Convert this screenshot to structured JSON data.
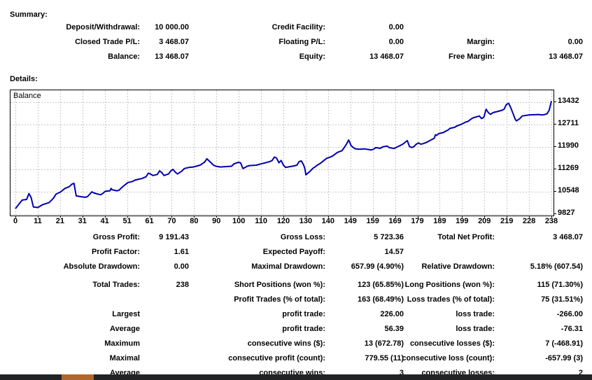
{
  "summary": {
    "title": "Summary:",
    "rows": [
      {
        "cells": [
          "Deposit/Withdrawal:",
          "10 000.00",
          "Credit Facility:",
          "0.00",
          "",
          ""
        ]
      },
      {
        "cells": [
          "Closed Trade P/L:",
          "3 468.07",
          "Floating P/L:",
          "0.00",
          "Margin:",
          "0.00"
        ]
      },
      {
        "cells": [
          "Balance:",
          "13 468.07",
          "Equity:",
          "13 468.07",
          "Free Margin:",
          "13 468.07"
        ]
      }
    ]
  },
  "details": {
    "title": "Details:",
    "rows": [
      {
        "cells": [
          "Gross Profit:",
          "9 191.43",
          "Gross Loss:",
          "5 723.36",
          "Total Net Profit:",
          "3 468.07"
        ]
      },
      {
        "cells": [
          "Profit Factor:",
          "1.61",
          "Expected Payoff:",
          "14.57",
          "",
          ""
        ]
      },
      {
        "cells": [
          "Absolute Drawdown:",
          "0.00",
          "Maximal Drawdown:",
          "657.99 (4.90%)",
          "Relative Drawdown:",
          "5.18% (607.54)"
        ]
      },
      {
        "cells": [
          "Total Trades:",
          "238",
          "Short Positions (won %):",
          "123 (65.85%)",
          "Long Positions (won %):",
          "115 (71.30%)"
        ]
      },
      {
        "cells": [
          "",
          "",
          "Profit Trades (% of total):",
          "163 (68.49%)",
          "Loss trades (% of total):",
          "75 (31.51%)"
        ]
      },
      {
        "cells": [
          "Largest",
          "",
          "profit trade:",
          "226.00",
          "loss trade:",
          "-266.00"
        ]
      },
      {
        "cells": [
          "Average",
          "",
          "profit trade:",
          "56.39",
          "loss trade:",
          "-76.31"
        ]
      },
      {
        "cells": [
          "Maximum",
          "",
          "consecutive wins ($):",
          "13 (672.78)",
          "consecutive losses ($):",
          "7 (-468.91)"
        ]
      },
      {
        "cells": [
          "Maximal",
          "",
          "consecutive profit (count):",
          "779.55 (11)",
          "consecutive loss (count):",
          "-657.99 (3)"
        ]
      },
      {
        "cells": [
          "Average",
          "",
          "consecutive wins:",
          "3",
          "consecutive losses:",
          "2"
        ]
      }
    ]
  },
  "chart_data": {
    "type": "line",
    "legend": "Balance",
    "xlabel": "",
    "ylabel": "",
    "x_range": [
      0,
      238
    ],
    "x_ticks": [
      "0",
      "11",
      "21",
      "31",
      "41",
      "51",
      "61",
      "70",
      "80",
      "90",
      "100",
      "110",
      "120",
      "130",
      "140",
      "149",
      "159",
      "169",
      "179",
      "189",
      "199",
      "209",
      "219",
      "228",
      "238"
    ],
    "y_ticks": [
      13432,
      12711,
      11990,
      11269,
      10548,
      9827
    ],
    "grid": true,
    "line_color": "#0000B0",
    "grid_color": "#c9c9c9",
    "points": [
      [
        0,
        10005
      ],
      [
        3,
        10280
      ],
      [
        5,
        10300
      ],
      [
        6,
        10490
      ],
      [
        7,
        10360
      ],
      [
        8,
        10060
      ],
      [
        10,
        10040
      ],
      [
        12,
        10130
      ],
      [
        15,
        10200
      ],
      [
        17,
        10350
      ],
      [
        18,
        10470
      ],
      [
        20,
        10540
      ],
      [
        22,
        10655
      ],
      [
        24,
        10715
      ],
      [
        25,
        10790
      ],
      [
        26,
        10820
      ],
      [
        26.5,
        10620
      ],
      [
        27,
        10415
      ],
      [
        29,
        10390
      ],
      [
        31,
        10370
      ],
      [
        32,
        10390
      ],
      [
        33,
        10470
      ],
      [
        34,
        10545
      ],
      [
        35,
        10505
      ],
      [
        37,
        10465
      ],
      [
        38,
        10455
      ],
      [
        39,
        10505
      ],
      [
        40,
        10565
      ],
      [
        42,
        10580
      ],
      [
        42.5,
        10655
      ],
      [
        43,
        10610
      ],
      [
        45,
        10580
      ],
      [
        46,
        10595
      ],
      [
        47,
        10670
      ],
      [
        48,
        10730
      ],
      [
        49,
        10790
      ],
      [
        50,
        10845
      ],
      [
        52,
        10880
      ],
      [
        53,
        10920
      ],
      [
        55,
        10955
      ],
      [
        56,
        10970
      ],
      [
        58,
        11030
      ],
      [
        59,
        11145
      ],
      [
        60,
        11120
      ],
      [
        61,
        11070
      ],
      [
        63,
        11105
      ],
      [
        64,
        11220
      ],
      [
        65,
        11165
      ],
      [
        66,
        11070
      ],
      [
        68,
        11120
      ],
      [
        69,
        11220
      ],
      [
        70,
        11270
      ],
      [
        71,
        11180
      ],
      [
        72,
        11120
      ],
      [
        74,
        11220
      ],
      [
        75,
        11295
      ],
      [
        77,
        11330
      ],
      [
        79,
        11345
      ],
      [
        82,
        11405
      ],
      [
        84,
        11500
      ],
      [
        85,
        11610
      ],
      [
        88,
        11405
      ],
      [
        89,
        11370
      ],
      [
        91,
        11345
      ],
      [
        96,
        11370
      ],
      [
        97,
        11445
      ],
      [
        99,
        11495
      ],
      [
        100,
        11480
      ],
      [
        101,
        11295
      ],
      [
        102,
        11330
      ],
      [
        103,
        11370
      ],
      [
        104,
        11390
      ],
      [
        107,
        11405
      ],
      [
        109,
        11445
      ],
      [
        111,
        11480
      ],
      [
        113,
        11520
      ],
      [
        114,
        11555
      ],
      [
        115,
        11665
      ],
      [
        116,
        11630
      ],
      [
        117,
        11480
      ],
      [
        118,
        11555
      ],
      [
        119,
        11405
      ],
      [
        120,
        11330
      ],
      [
        121,
        11345
      ],
      [
        123,
        11370
      ],
      [
        124,
        11385
      ],
      [
        125,
        11405
      ],
      [
        126,
        11520
      ],
      [
        127,
        11540
      ],
      [
        128,
        11405
      ],
      [
        128.5,
        11295
      ],
      [
        129,
        11090
      ],
      [
        131,
        11220
      ],
      [
        132,
        11295
      ],
      [
        133,
        11345
      ],
      [
        134,
        11405
      ],
      [
        135,
        11445
      ],
      [
        136,
        11495
      ],
      [
        137,
        11555
      ],
      [
        138,
        11615
      ],
      [
        140,
        11670
      ],
      [
        141,
        11705
      ],
      [
        142,
        11760
      ],
      [
        143,
        11815
      ],
      [
        145,
        11870
      ],
      [
        146,
        11970
      ],
      [
        147,
        12080
      ],
      [
        148,
        12215
      ],
      [
        149,
        12040
      ],
      [
        150,
        11970
      ],
      [
        151,
        11930
      ],
      [
        153,
        11915
      ],
      [
        155,
        11930
      ],
      [
        156,
        11915
      ],
      [
        158,
        11895
      ],
      [
        159,
        11915
      ],
      [
        160,
        11970
      ],
      [
        162,
        11945
      ],
      [
        163,
        11990
      ],
      [
        165,
        12020
      ],
      [
        166,
        11970
      ],
      [
        168,
        11940
      ],
      [
        169,
        11970
      ],
      [
        171,
        12045
      ],
      [
        172,
        12080
      ],
      [
        174,
        12195
      ],
      [
        175,
        12005
      ],
      [
        176,
        11970
      ],
      [
        177,
        12005
      ],
      [
        178,
        12080
      ],
      [
        179,
        12120
      ],
      [
        180,
        12080
      ],
      [
        181,
        12095
      ],
      [
        182,
        12120
      ],
      [
        183,
        12155
      ],
      [
        184,
        12195
      ],
      [
        186,
        12270
      ],
      [
        186.5,
        12380
      ],
      [
        187,
        12365
      ],
      [
        188,
        12420
      ],
      [
        190,
        12455
      ],
      [
        191,
        12495
      ],
      [
        192,
        12530
      ],
      [
        193,
        12590
      ],
      [
        195,
        12620
      ],
      [
        196,
        12665
      ],
      [
        198,
        12720
      ],
      [
        199,
        12755
      ],
      [
        200,
        12795
      ],
      [
        201,
        12815
      ],
      [
        202,
        12870
      ],
      [
        203,
        12920
      ],
      [
        204,
        12945
      ],
      [
        205,
        12965
      ],
      [
        206,
        12985
      ],
      [
        207,
        12905
      ],
      [
        208,
        12945
      ],
      [
        209,
        13205
      ],
      [
        210,
        13095
      ],
      [
        211,
        13040
      ],
      [
        212,
        13095
      ],
      [
        213,
        13115
      ],
      [
        214,
        13130
      ],
      [
        216,
        13170
      ],
      [
        217,
        13205
      ],
      [
        218,
        13355
      ],
      [
        219,
        13395
      ],
      [
        220,
        13245
      ],
      [
        221,
        13055
      ],
      [
        222,
        12870
      ],
      [
        222.5,
        12830
      ],
      [
        224,
        12905
      ],
      [
        225,
        12985
      ],
      [
        226,
        13000
      ],
      [
        228,
        13020
      ],
      [
        232,
        13035
      ],
      [
        234,
        13020
      ],
      [
        235,
        13035
      ],
      [
        236,
        13055
      ],
      [
        237,
        13170
      ],
      [
        237.5,
        13320
      ],
      [
        238,
        13468
      ]
    ]
  },
  "taskbar": {
    "bg_color": "#212325",
    "accent_color": "#b2662c",
    "accent_left": 88,
    "accent_width": 46
  }
}
